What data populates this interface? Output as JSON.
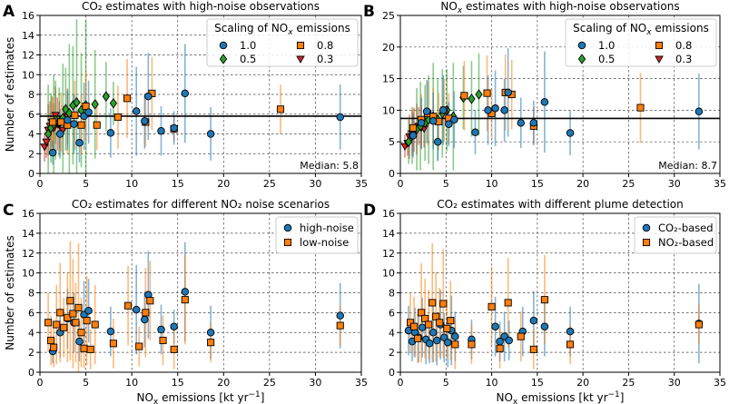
{
  "figure": {
    "x_label": "NOx emissions [kt yr⁻¹]"
  },
  "colors": {
    "blue": "#1f77b4",
    "orange": "#ff7f0e",
    "green": "#2ca02c",
    "red": "#d62728",
    "median_line": "#000000",
    "grid": "#444444"
  },
  "chart_data": [
    {
      "panel": "A",
      "type": "scatter",
      "title": "CO₂ estimates with high-noise observations",
      "xlabel": "",
      "ylabel": "Number of estimates",
      "xlim": [
        0,
        35
      ],
      "ylim": [
        0,
        16
      ],
      "xticks": [
        "0",
        "5",
        "10",
        "15",
        "20",
        "25",
        "30",
        "35"
      ],
      "yticks": [
        "0",
        "2",
        "4",
        "6",
        "8",
        "10",
        "12",
        "14",
        "16"
      ],
      "median": {
        "value": 5.8,
        "label": "Median: 5.8"
      },
      "legend": {
        "title": "Scaling of NOx emissions",
        "position": "top-right",
        "entries": [
          {
            "label": "1.0",
            "series": "s10"
          },
          {
            "label": "0.8",
            "series": "s08"
          },
          {
            "label": "0.5",
            "series": "s05"
          },
          {
            "label": "0.3",
            "series": "s03"
          }
        ]
      },
      "series": [
        {
          "id": "s03",
          "name": "0.3",
          "marker": "triangle",
          "color_key": "red",
          "x": [
            0.5,
            0.7,
            0.9,
            1.1,
            1.3,
            1.5,
            1.7,
            1.9,
            2.1,
            2.5,
            3.0
          ],
          "y": [
            2.7,
            3.2,
            4.4,
            4.8,
            5.2,
            4.6,
            5.9,
            5.0,
            4.9,
            4.4,
            5.8
          ],
          "err": [
            1.5,
            1.6,
            2.6,
            2.5,
            2.6,
            2.5,
            2.9,
            2.7,
            2.4,
            2.5,
            2.8
          ]
        },
        {
          "id": "s05",
          "name": "0.5",
          "marker": "diamond",
          "color_key": "green",
          "x": [
            0.9,
            1.2,
            1.5,
            1.7,
            2.1,
            2.5,
            2.8,
            3.2,
            3.6,
            4.0,
            4.5,
            5.0,
            6.0,
            7.2,
            8.0
          ],
          "y": [
            4.0,
            4.6,
            5.0,
            5.4,
            5.2,
            5.6,
            6.5,
            6.1,
            6.9,
            7.2,
            6.4,
            6.9,
            7.0,
            7.8,
            7.1
          ],
          "err": [
            5.0,
            3.5,
            5.0,
            4.0,
            3.5,
            5.5,
            4.2,
            7.0,
            6.0,
            8.4,
            5.8,
            8.7,
            5.5,
            3.5,
            2.2
          ]
        },
        {
          "id": "s08",
          "name": "0.8",
          "marker": "square",
          "color_key": "orange",
          "x": [
            1.4,
            2.3,
            3.0,
            3.8,
            4.5,
            5.0,
            6.2,
            8.5,
            9.5,
            11.5,
            12.2,
            14.6,
            26.2
          ],
          "y": [
            5.2,
            5.2,
            4.9,
            5.9,
            4.9,
            6.8,
            4.9,
            5.7,
            7.6,
            5.2,
            8.1,
            4.5,
            6.5
          ],
          "err": [
            2.5,
            3.0,
            3.0,
            3.5,
            3.0,
            3.5,
            2.5,
            3.2,
            4.0,
            2.5,
            3.7,
            1.3,
            2.5
          ]
        },
        {
          "id": "s10",
          "name": "1.0",
          "marker": "circle",
          "color_key": "blue",
          "x": [
            1.4,
            2.2,
            3.0,
            3.7,
            4.3,
            4.8,
            5.3,
            7.7,
            10.5,
            11.4,
            11.8,
            13.2,
            14.6,
            15.8,
            18.6,
            32.7
          ],
          "y": [
            2.1,
            4.0,
            5.4,
            5.0,
            3.1,
            5.8,
            6.2,
            4.1,
            6.3,
            5.3,
            7.8,
            4.3,
            4.6,
            8.1,
            4.0,
            5.7
          ],
          "err": [
            1.2,
            2.5,
            3.0,
            3.0,
            2.0,
            3.4,
            3.2,
            2.5,
            4.5,
            2.8,
            4.4,
            2.5,
            1.7,
            5.0,
            2.7,
            3.3
          ]
        }
      ]
    },
    {
      "panel": "B",
      "type": "scatter",
      "title": "NOx estimates with high-noise observations",
      "xlabel": "",
      "ylabel": "",
      "xlim": [
        0,
        35
      ],
      "ylim": [
        0,
        25
      ],
      "xticks": [
        "0",
        "5",
        "10",
        "15",
        "20",
        "25",
        "30",
        "35"
      ],
      "yticks": [
        "0",
        "5",
        "10",
        "15",
        "20",
        "25"
      ],
      "median": {
        "value": 8.7,
        "label": "Median: 8.7"
      },
      "legend": {
        "title": "Scaling of NOx emissions",
        "position": "top-right",
        "entries": [
          {
            "label": "1.0",
            "series": "s10"
          },
          {
            "label": "0.8",
            "series": "s08"
          },
          {
            "label": "0.5",
            "series": "s05"
          },
          {
            "label": "0.3",
            "series": "s03"
          }
        ]
      },
      "series": [
        {
          "id": "s03",
          "name": "0.3",
          "marker": "triangle",
          "color_key": "red",
          "x": [
            0.5,
            0.8,
            1.0,
            1.3,
            1.5,
            1.8,
            2.0,
            2.3,
            2.6
          ],
          "y": [
            4.3,
            4.8,
            5.8,
            6.3,
            6.9,
            7.0,
            7.5,
            7.3,
            7.1
          ],
          "err": [
            1.8,
            2.0,
            3.5,
            3.5,
            3.5,
            4.0,
            3.0,
            3.5,
            3.0
          ]
        },
        {
          "id": "s05",
          "name": "0.5",
          "marker": "diamond",
          "color_key": "green",
          "x": [
            0.9,
            1.3,
            1.8,
            2.2,
            2.7,
            3.1,
            3.6,
            4.1,
            4.6,
            5.1,
            5.8,
            6.9,
            7.8,
            8.6
          ],
          "y": [
            5.0,
            6.0,
            7.0,
            7.5,
            8.0,
            8.5,
            9.0,
            8.5,
            9.5,
            10.0,
            9.0,
            12.0,
            11.8,
            12.5
          ],
          "err": [
            3.5,
            4.5,
            6.5,
            7.0,
            6.0,
            7.0,
            8.5,
            6.5,
            7.0,
            6.5,
            8.5,
            5.0,
            6.0,
            6.5
          ]
        },
        {
          "id": "s08",
          "name": "0.8",
          "marker": "square",
          "color_key": "orange",
          "x": [
            1.4,
            2.3,
            3.0,
            3.6,
            4.2,
            4.8,
            5.3,
            7.0,
            9.5,
            10.0,
            11.5,
            12.2,
            14.6,
            26.3
          ],
          "y": [
            7.2,
            8.5,
            9.5,
            9.0,
            8.2,
            10.0,
            8.7,
            12.3,
            12.7,
            9.5,
            12.8,
            12.5,
            7.5,
            10.4
          ],
          "err": [
            3.0,
            4.0,
            5.0,
            4.5,
            4.5,
            5.0,
            4.0,
            5.5,
            6.0,
            4.0,
            6.0,
            5.5,
            3.0,
            5.5
          ]
        },
        {
          "id": "s10",
          "name": "1.0",
          "marker": "circle",
          "color_key": "blue",
          "x": [
            1.4,
            2.3,
            2.9,
            3.6,
            4.1,
            4.7,
            5.3,
            5.9,
            8.2,
            9.6,
            10.4,
            11.4,
            11.8,
            13.2,
            14.6,
            15.8,
            18.6,
            32.7
          ],
          "y": [
            6.0,
            8.0,
            9.8,
            8.3,
            5.0,
            10.0,
            7.8,
            8.5,
            6.5,
            10.0,
            10.3,
            10.0,
            12.8,
            8.0,
            8.0,
            11.3,
            6.4,
            9.8
          ],
          "err": [
            3.5,
            4.0,
            5.0,
            4.5,
            3.0,
            5.5,
            3.5,
            4.5,
            3.5,
            5.5,
            6.0,
            5.0,
            7.0,
            4.0,
            3.5,
            8.0,
            3.5,
            6.0
          ]
        }
      ]
    },
    {
      "panel": "C",
      "type": "scatter",
      "title": "CO₂ estimates for different NO₂ noise scenarios",
      "xlabel": "NOx emissions [kt yr⁻¹]",
      "ylabel": "Number of estimates",
      "xlim": [
        0,
        35
      ],
      "ylim": [
        0,
        16
      ],
      "xticks": [
        "0",
        "5",
        "10",
        "15",
        "20",
        "25",
        "30",
        "35"
      ],
      "yticks": [
        "0",
        "2",
        "4",
        "6",
        "8",
        "10",
        "12",
        "14",
        "16"
      ],
      "legend": {
        "title": "",
        "position": "top-right",
        "entries": [
          {
            "label": "high-noise",
            "series": "high"
          },
          {
            "label": "low-noise",
            "series": "low"
          }
        ]
      },
      "series": [
        {
          "id": "high",
          "name": "high-noise",
          "marker": "circle",
          "color_key": "blue",
          "x": [
            1.4,
            2.2,
            3.0,
            3.7,
            4.3,
            4.8,
            5.3,
            7.7,
            10.5,
            11.4,
            11.8,
            13.2,
            14.6,
            15.8,
            18.6,
            32.7
          ],
          "y": [
            2.1,
            4.0,
            5.4,
            5.0,
            3.1,
            5.8,
            6.2,
            4.1,
            6.3,
            5.3,
            7.8,
            4.3,
            4.6,
            8.1,
            4.0,
            5.7
          ],
          "err": [
            1.2,
            2.5,
            3.0,
            3.0,
            2.0,
            3.4,
            3.2,
            2.5,
            4.5,
            2.8,
            4.4,
            2.5,
            1.7,
            5.0,
            2.7,
            3.3
          ]
        },
        {
          "id": "low",
          "name": "low-noise",
          "marker": "square",
          "color_key": "orange",
          "x": [
            0.9,
            1.2,
            1.5,
            1.8,
            2.2,
            2.6,
            3.0,
            3.3,
            3.6,
            3.9,
            4.2,
            4.5,
            4.8,
            5.1,
            5.5,
            6.0,
            8.0,
            9.6,
            10.8,
            11.5,
            12.0,
            13.4,
            14.6,
            15.8,
            18.6,
            32.7
          ],
          "y": [
            5.0,
            3.2,
            2.5,
            4.8,
            6.0,
            4.5,
            5.5,
            7.2,
            5.9,
            5.0,
            6.5,
            4.0,
            2.4,
            5.2,
            2.3,
            4.8,
            2.9,
            6.7,
            2.6,
            6.0,
            7.2,
            3.2,
            2.3,
            7.3,
            3.0,
            4.7
          ],
          "err": [
            3.0,
            2.5,
            2.0,
            4.0,
            5.0,
            3.0,
            4.5,
            6.0,
            5.5,
            4.0,
            6.5,
            3.5,
            2.0,
            4.5,
            2.0,
            4.0,
            2.5,
            4.0,
            2.0,
            4.5,
            4.0,
            2.5,
            2.0,
            4.5,
            2.0,
            2.0
          ]
        }
      ]
    },
    {
      "panel": "D",
      "type": "scatter",
      "title": "CO₂ estimates with different plume detection",
      "xlabel": "NOx emissions [kt yr⁻¹]",
      "ylabel": "",
      "xlim": [
        0,
        35
      ],
      "ylim": [
        0,
        16
      ],
      "xticks": [
        "0",
        "5",
        "10",
        "15",
        "20",
        "25",
        "30",
        "35"
      ],
      "yticks": [
        "0",
        "2",
        "4",
        "6",
        "8",
        "10",
        "12",
        "14",
        "16"
      ],
      "legend": {
        "title": "",
        "position": "top-right",
        "entries": [
          {
            "label": "CO₂-based",
            "series": "co2"
          },
          {
            "label": "NO₂-based",
            "series": "no2"
          }
        ]
      },
      "series": [
        {
          "id": "co2",
          "name": "CO₂-based",
          "marker": "circle",
          "color_key": "blue",
          "x": [
            0.9,
            1.3,
            1.6,
            2.0,
            2.4,
            2.8,
            3.2,
            3.6,
            4.0,
            4.4,
            4.8,
            5.2,
            5.6,
            6.0,
            7.8,
            10.4,
            10.9,
            11.4,
            11.9,
            13.4,
            14.6,
            15.8,
            18.6,
            32.7
          ],
          "y": [
            4.2,
            3.1,
            4.0,
            3.5,
            4.5,
            3.3,
            2.9,
            4.0,
            3.2,
            4.8,
            3.5,
            3.0,
            4.2,
            3.6,
            3.3,
            4.6,
            3.1,
            3.6,
            3.2,
            4.1,
            5.2,
            4.6,
            4.1,
            4.9
          ],
          "err": [
            2.5,
            2.0,
            2.5,
            2.5,
            3.0,
            2.5,
            2.0,
            3.0,
            2.5,
            3.5,
            2.5,
            2.5,
            3.5,
            2.5,
            2.0,
            3.0,
            2.0,
            2.5,
            2.0,
            2.5,
            3.0,
            3.0,
            2.5,
            4.0
          ]
        },
        {
          "id": "no2",
          "name": "NO₂-based",
          "marker": "square",
          "color_key": "orange",
          "x": [
            1.1,
            1.5,
            1.9,
            2.3,
            2.7,
            3.1,
            3.5,
            3.9,
            4.3,
            4.7,
            5.1,
            5.5,
            6.0,
            7.8,
            10.0,
            10.9,
            11.8,
            13.2,
            14.6,
            15.8,
            18.6,
            32.7
          ],
          "y": [
            5.0,
            4.6,
            3.4,
            6.0,
            5.4,
            4.8,
            7.0,
            5.6,
            5.0,
            6.9,
            4.4,
            5.2,
            2.8,
            2.8,
            6.6,
            2.4,
            7.0,
            3.6,
            2.3,
            7.3,
            2.8,
            4.8
          ],
          "err": [
            3.0,
            3.0,
            2.5,
            5.0,
            4.0,
            3.5,
            6.0,
            4.5,
            3.5,
            5.5,
            3.0,
            4.0,
            2.5,
            2.0,
            4.0,
            2.0,
            4.5,
            2.5,
            2.0,
            4.5,
            2.0,
            2.0
          ]
        }
      ]
    }
  ]
}
